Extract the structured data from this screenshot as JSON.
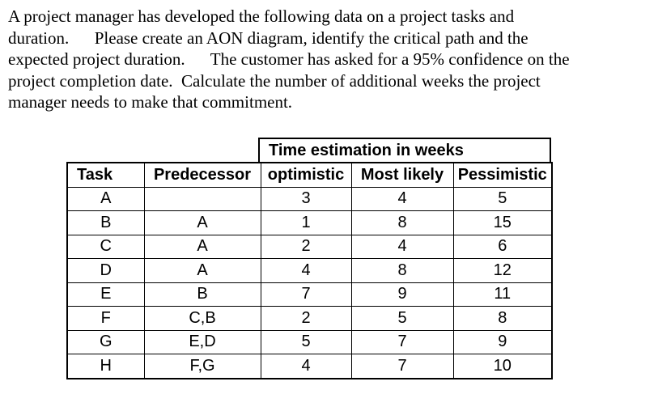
{
  "paragraph": {
    "lines": [
      "A project manager has developed the following data on a project tasks and",
      "duration.      Please create an AON diagram, identify the critical path and the",
      "expected project duration.      The customer has asked for a 95% confidence on the",
      "project completion date.  Calculate the number of additional weeks the project",
      "manager needs to make that commitment."
    ]
  },
  "table": {
    "group_header": "Time estimation in weeks",
    "columns": [
      "Task",
      "Predecessor",
      "optimistic",
      "Most likely",
      "Pessimistic"
    ],
    "rows": [
      {
        "task": "A",
        "predecessor": "",
        "optimistic": "3",
        "most_likely": "4",
        "pessimistic": "5"
      },
      {
        "task": "B",
        "predecessor": "A",
        "optimistic": "1",
        "most_likely": "8",
        "pessimistic": "15"
      },
      {
        "task": "C",
        "predecessor": "A",
        "optimistic": "2",
        "most_likely": "4",
        "pessimistic": "6"
      },
      {
        "task": "D",
        "predecessor": "A",
        "optimistic": "4",
        "most_likely": "8",
        "pessimistic": "12"
      },
      {
        "task": "E",
        "predecessor": "B",
        "optimistic": "7",
        "most_likely": "9",
        "pessimistic": "11"
      },
      {
        "task": "F",
        "predecessor": "C,B",
        "optimistic": "2",
        "most_likely": "5",
        "pessimistic": "8"
      },
      {
        "task": "G",
        "predecessor": "E,D",
        "optimistic": "5",
        "most_likely": "7",
        "pessimistic": "9"
      },
      {
        "task": "H",
        "predecessor": "F,G",
        "optimistic": "4",
        "most_likely": "7",
        "pessimistic": "10"
      }
    ]
  },
  "colors": {
    "text": "#000000",
    "border": "#000000",
    "background": "#ffffff"
  }
}
